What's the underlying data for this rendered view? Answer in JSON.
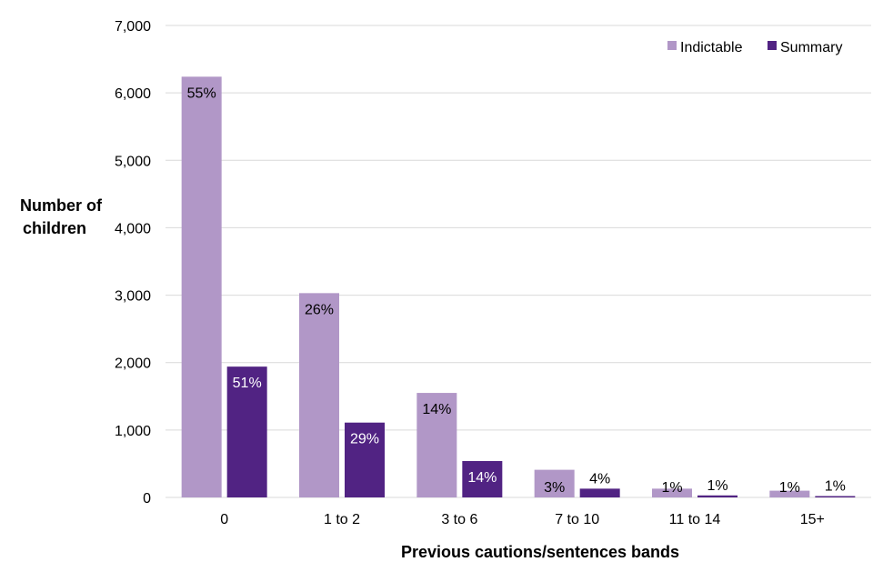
{
  "chart_data": {
    "type": "bar",
    "title": "",
    "xlabel": "Previous cautions/sentences bands",
    "ylabel_lines": [
      "Number of",
      "children"
    ],
    "ylim": [
      0,
      7000
    ],
    "ytick_values": [
      0,
      1000,
      2000,
      3000,
      4000,
      5000,
      6000,
      7000
    ],
    "ytick_labels": [
      "0",
      "1,000",
      "2,000",
      "3,000",
      "4,000",
      "5,000",
      "6,000",
      "7,000"
    ],
    "grid": true,
    "legend_position": "top-right",
    "categories": [
      "0",
      "1 to 2",
      "3 to 6",
      "7 to 10",
      "11 to 14",
      "15+"
    ],
    "series": [
      {
        "name": "Indictable",
        "color": "#B197C7",
        "values": [
          6240,
          3030,
          1550,
          410,
          130,
          100
        ],
        "labels": [
          "55%",
          "26%",
          "14%",
          "3%",
          "1%",
          "1%"
        ],
        "label_color": "#000000"
      },
      {
        "name": "Summary",
        "color": "#512383",
        "values": [
          1940,
          1110,
          540,
          130,
          30,
          20
        ],
        "labels": [
          "51%",
          "29%",
          "14%",
          "4%",
          "1%",
          "1%"
        ],
        "label_color_inside": "#ffffff",
        "label_color_outside": "#000000"
      }
    ]
  }
}
